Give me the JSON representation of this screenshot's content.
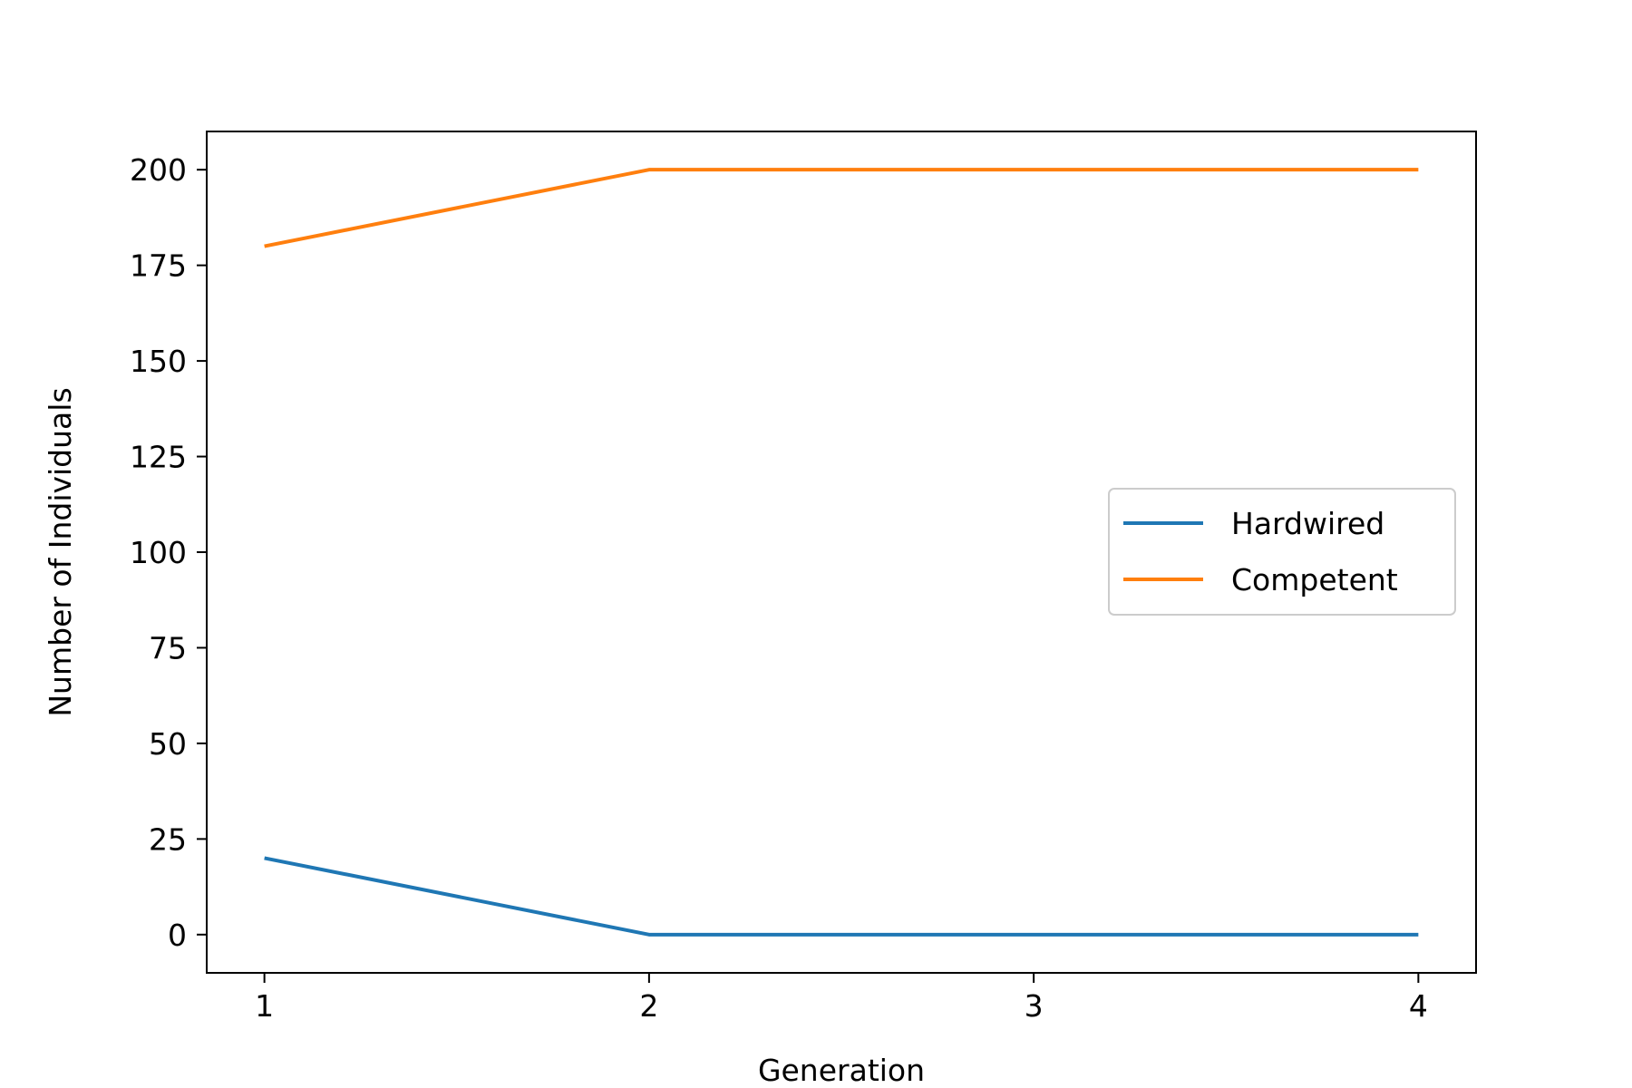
{
  "chart_data": {
    "type": "line",
    "title": "",
    "xlabel": "Generation",
    "ylabel": "Number of Individuals",
    "x": [
      1,
      2,
      3,
      4
    ],
    "xticks": [
      1,
      2,
      3,
      4
    ],
    "yticks": [
      0,
      25,
      50,
      75,
      100,
      125,
      150,
      175,
      200
    ],
    "xlim": [
      0.85,
      4.15
    ],
    "ylim": [
      -10,
      210
    ],
    "grid": false,
    "legend_position": "center-right",
    "series": [
      {
        "name": "Hardwired",
        "color": "#1f77b4",
        "values": [
          20,
          0,
          0,
          0
        ]
      },
      {
        "name": "Competent",
        "color": "#ff7f0e",
        "values": [
          180,
          200,
          200,
          200
        ]
      }
    ]
  }
}
